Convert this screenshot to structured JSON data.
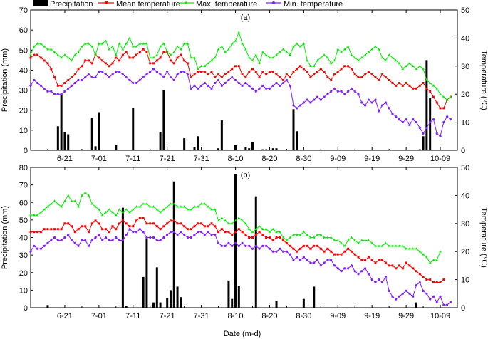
{
  "legend": [
    {
      "label": "Precipitation",
      "kind": "bar",
      "color": "#000000"
    },
    {
      "label": "Mean temperature",
      "kind": "line",
      "color": "#ff0000",
      "marker": "square"
    },
    {
      "label": "Max. temperature",
      "kind": "line",
      "color": "#00ee00",
      "marker": "triangle"
    },
    {
      "label": "Min. temperature",
      "kind": "line",
      "color": "#7f1fff",
      "marker": "circle"
    }
  ],
  "xlabel": "Date (m-d)",
  "chart_data": [
    {
      "type": "bar+line",
      "panel_label": "(a)",
      "x_ticks": [
        "6-21",
        "7-01",
        "7-11",
        "7-21",
        "7-31",
        "8-10",
        "8-20",
        "8-30",
        "9-09",
        "9-19",
        "9-29",
        "10-09"
      ],
      "x_tick_days": [
        10,
        20,
        30,
        40,
        50,
        60,
        70,
        80,
        90,
        100,
        110,
        120
      ],
      "xlim": [
        0,
        125
      ],
      "y_left": {
        "label": "Precipitation (mm)",
        "lim": [
          0,
          70
        ],
        "ticks": [
          0,
          10,
          20,
          30,
          40,
          50,
          60,
          70
        ]
      },
      "y_right": {
        "label": "Temperature (℃)",
        "lim": [
          0,
          50
        ],
        "ticks": [
          0,
          10,
          20,
          30,
          40,
          50
        ]
      },
      "precipitation": {
        "days": [
          8,
          9,
          10,
          11,
          18,
          19,
          20,
          25,
          30,
          38,
          39,
          45,
          48,
          49,
          55,
          56,
          60,
          63,
          64,
          65,
          68,
          69,
          71,
          72,
          77,
          78,
          114,
          115,
          116,
          117
        ],
        "values": [
          12,
          28,
          9,
          8,
          16,
          2,
          19,
          2.5,
          21,
          9,
          30,
          6,
          1.5,
          7,
          1,
          15,
          2.5,
          1.5,
          1,
          4,
          0.5,
          0.5,
          1,
          1,
          20.5,
          9.5,
          0.5,
          7,
          45,
          26
        ]
      },
      "series": [
        {
          "name": "Mean temperature",
          "axis": "right",
          "start_day": -5,
          "values": [
            25,
            24,
            28,
            30,
            32,
            33,
            34,
            34,
            33,
            32,
            31,
            29,
            26,
            23,
            23,
            24,
            25,
            26,
            27,
            29,
            30,
            32,
            32,
            31,
            34,
            33,
            32,
            31,
            30,
            31,
            33,
            32,
            34,
            35,
            33,
            33,
            34,
            35,
            36,
            35,
            31,
            31,
            32,
            33,
            35,
            35,
            32,
            31,
            33,
            34,
            32,
            31,
            26,
            27,
            28,
            28,
            28,
            27,
            28,
            26,
            27,
            26,
            27,
            28,
            29,
            30,
            30,
            27,
            26,
            28,
            29,
            28,
            26,
            28,
            27,
            28,
            28,
            27,
            26,
            25,
            27,
            26,
            28,
            29,
            30,
            29,
            28,
            26,
            27,
            28,
            29,
            28,
            26,
            25,
            27,
            28,
            29,
            30,
            30,
            29,
            27,
            26,
            26,
            27,
            28,
            27,
            26,
            25,
            27,
            26,
            25,
            24,
            23,
            24,
            23,
            24,
            23,
            22,
            22,
            23,
            24,
            22,
            21,
            19,
            17,
            15,
            15,
            18,
            19
          ]
        },
        {
          "name": "Max. temperature",
          "axis": "right",
          "start_day": -5,
          "values": [
            28,
            27,
            28,
            31,
            33,
            34,
            37,
            38,
            38,
            37,
            36,
            36,
            35,
            34,
            33,
            34,
            33,
            32,
            34,
            35,
            37,
            38,
            38,
            37,
            34,
            38,
            38,
            39,
            36,
            37,
            34,
            38,
            36,
            38,
            40,
            37,
            37,
            38,
            38,
            38,
            33,
            33,
            34,
            37,
            38,
            35,
            34,
            35,
            37,
            36,
            38,
            38,
            33,
            33,
            29,
            30,
            30,
            31,
            32,
            33,
            36,
            37,
            35,
            36,
            38,
            39,
            42,
            38,
            36,
            33,
            32,
            34,
            31,
            35,
            34,
            33,
            33,
            34,
            35,
            36,
            35,
            34,
            37,
            38,
            37,
            38,
            32,
            30,
            30,
            32,
            33,
            34,
            33,
            31,
            32,
            36,
            35,
            36,
            37,
            34,
            33,
            32,
            33,
            34,
            35,
            36,
            37,
            36,
            33,
            32,
            34,
            33,
            32,
            31,
            29,
            30,
            31,
            30,
            29,
            30,
            29,
            25,
            24,
            23,
            22,
            20,
            19,
            18,
            19
          ]
        },
        {
          "name": "Min. temperature",
          "axis": "right",
          "start_day": -5,
          "values": [
            21,
            20,
            17,
            22,
            24,
            23,
            25,
            24,
            23,
            22,
            21,
            21,
            20,
            20,
            20,
            21,
            22,
            23,
            24,
            25,
            25,
            26,
            27,
            26,
            26,
            28,
            28,
            27,
            26,
            27,
            28,
            28,
            27,
            26,
            25,
            24,
            24,
            25,
            26,
            27,
            28,
            29,
            28,
            27,
            26,
            28,
            26,
            25,
            27,
            28,
            28,
            27,
            22,
            23,
            22,
            23,
            24,
            23,
            22,
            24,
            25,
            23,
            24,
            25,
            26,
            25,
            24,
            23,
            24,
            23,
            22,
            21,
            22,
            23,
            22,
            22,
            23,
            24,
            23,
            24,
            25,
            23,
            16,
            15,
            16,
            17,
            18,
            17,
            18,
            19,
            18,
            19,
            20,
            21,
            22,
            21,
            21,
            20,
            21,
            22,
            21,
            20,
            17,
            16,
            18,
            17,
            18,
            14,
            16,
            17,
            15,
            13,
            12,
            11,
            10,
            11,
            9,
            11,
            10,
            8,
            6,
            8,
            10,
            11,
            6,
            5,
            10,
            12,
            11
          ]
        }
      ]
    },
    {
      "type": "bar+line",
      "panel_label": "(b)",
      "x_ticks": [
        "6-21",
        "7-01",
        "7-11",
        "7-21",
        "7-31",
        "8-10",
        "8-20",
        "8-30",
        "9-09",
        "9-19",
        "9-29",
        "10-09"
      ],
      "x_tick_days": [
        10,
        20,
        30,
        40,
        50,
        60,
        70,
        80,
        90,
        100,
        110,
        120
      ],
      "xlim": [
        0,
        125
      ],
      "y_left": {
        "label": "Precipitation (mm)",
        "lim": [
          0,
          80
        ],
        "ticks": [
          0,
          10,
          20,
          30,
          40,
          50,
          60,
          70,
          80
        ]
      },
      "y_right": {
        "label": "Temperature (℃)",
        "lim": [
          0,
          50
        ],
        "ticks": [
          0,
          10,
          20,
          30,
          40,
          50
        ]
      },
      "precipitation": {
        "days": [
          5,
          27,
          28,
          33,
          34,
          36,
          37,
          38,
          40,
          41,
          42,
          43,
          44,
          58,
          59,
          60,
          61,
          66,
          72,
          80,
          83,
          113
        ],
        "values": [
          1.5,
          57,
          1,
          17.5,
          40,
          3,
          23,
          3,
          5.5,
          10,
          72,
          12,
          6,
          15.5,
          5,
          76,
          12.5,
          63.5,
          4,
          5,
          12,
          3
        ]
      },
      "series": [
        {
          "name": "Mean temperature",
          "axis": "right",
          "start_day": -5,
          "values": [
            24,
            24,
            25,
            25,
            26,
            27,
            27,
            27,
            27,
            28,
            28,
            28,
            28,
            28,
            28,
            30,
            30,
            29,
            27,
            28,
            29,
            29,
            27,
            30,
            31,
            30,
            28,
            28,
            27,
            29,
            28,
            30,
            31,
            30,
            29,
            29,
            31,
            32,
            32,
            30,
            30,
            30,
            29,
            28,
            29,
            30,
            31,
            31,
            30,
            30,
            29,
            28,
            28,
            29,
            30,
            30,
            29,
            29,
            30,
            29,
            27,
            28,
            27,
            27,
            26,
            27,
            28,
            27,
            26,
            25,
            25,
            26,
            27,
            26,
            25,
            25,
            24,
            25,
            25,
            24,
            23,
            22,
            21,
            20,
            21,
            22,
            22,
            21,
            22,
            22,
            21,
            20,
            21,
            20,
            19,
            19,
            19,
            20,
            21,
            20,
            19,
            18,
            17,
            17,
            18,
            17,
            16,
            17,
            17,
            16,
            15,
            15,
            14,
            15,
            14,
            16,
            15,
            14,
            13,
            12,
            11,
            10,
            10,
            9,
            9,
            9,
            10
          ]
        },
        {
          "name": "Max. temperature",
          "axis": "right",
          "start_day": -5,
          "values": [
            33,
            31,
            32,
            34,
            33,
            33,
            33,
            33,
            34,
            35,
            36,
            37,
            38,
            37,
            36,
            38,
            40,
            38,
            38,
            36,
            40,
            41,
            40,
            37,
            36,
            35,
            33,
            34,
            35,
            34,
            33,
            35,
            34,
            35,
            34,
            35,
            36,
            36,
            37,
            37,
            36,
            36,
            35,
            34,
            35,
            36,
            37,
            37,
            36,
            36,
            36,
            35,
            35,
            36,
            36,
            37,
            37,
            36,
            35,
            35,
            31,
            32,
            31,
            30,
            30,
            31,
            32,
            31,
            30,
            28,
            27,
            28,
            29,
            28,
            28,
            27,
            28,
            27,
            27,
            25,
            24,
            25,
            26,
            26,
            26,
            27,
            26,
            25,
            25,
            26,
            26,
            25,
            25,
            25,
            24,
            24,
            23,
            22,
            24,
            25,
            24,
            23,
            24,
            24,
            24,
            23,
            22,
            22,
            22,
            23,
            22,
            22,
            22,
            22,
            22,
            21,
            21,
            21,
            21,
            20,
            19,
            18,
            16,
            17,
            17,
            20
          ]
        },
        {
          "name": "Min. temperature",
          "axis": "right",
          "start_day": -5,
          "values": [
            18,
            21,
            15,
            19,
            19,
            20,
            22,
            21,
            21,
            22,
            23,
            24,
            25,
            24,
            24,
            25,
            26,
            24,
            23,
            22,
            24,
            24,
            22,
            24,
            25,
            26,
            24,
            25,
            24,
            24,
            25,
            24,
            24,
            26,
            28,
            27,
            27,
            28,
            27,
            25,
            25,
            25,
            24,
            24,
            25,
            26,
            27,
            27,
            26,
            27,
            26,
            25,
            25,
            26,
            27,
            27,
            26,
            27,
            26,
            26,
            23,
            22,
            22,
            23,
            22,
            23,
            22,
            23,
            22,
            22,
            21,
            22,
            21,
            22,
            22,
            21,
            20,
            20,
            21,
            20,
            20,
            19,
            17,
            18,
            17,
            18,
            17,
            16,
            16,
            17,
            15,
            16,
            17,
            17,
            15,
            14,
            13,
            14,
            14,
            15,
            13,
            12,
            13,
            14,
            12,
            10,
            9,
            10,
            9,
            11,
            6,
            4,
            3,
            4,
            5,
            6,
            5,
            4,
            8,
            9,
            6,
            5,
            3,
            4,
            2,
            4,
            1,
            1,
            2
          ]
        }
      ]
    }
  ],
  "colors": {
    "mean": "#ff0000",
    "max": "#00ee00",
    "min": "#7f1fff",
    "precip": "#000000"
  }
}
